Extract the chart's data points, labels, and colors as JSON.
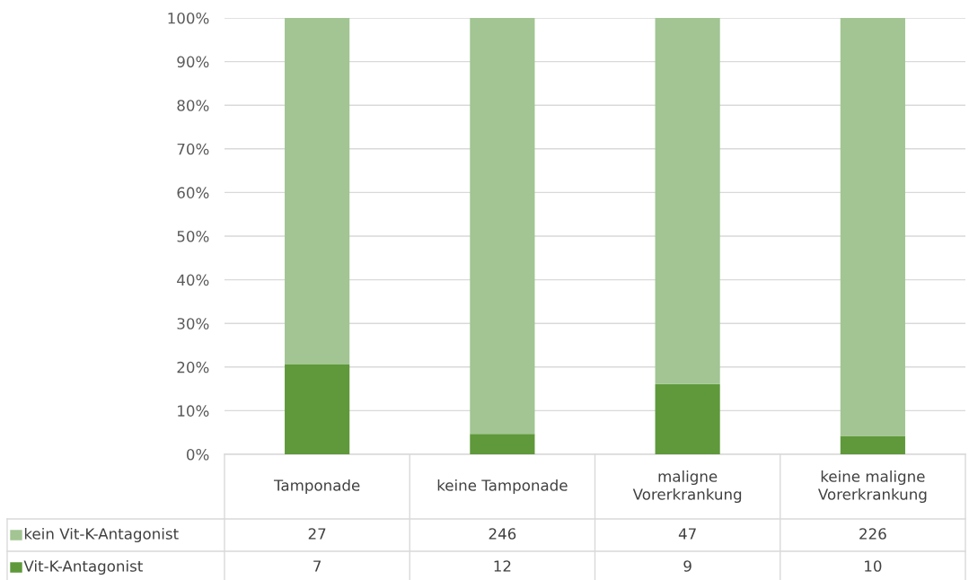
{
  "chart_data": {
    "type": "bar",
    "stacked": true,
    "categories": [
      "Tamponade",
      "keine Tamponade",
      "maligne Vorerkrankung",
      "keine maligne Vorerkrankung"
    ],
    "series": [
      {
        "name": "Vit-K-Antagonist",
        "color": "#5f993b",
        "values": [
          20.6,
          4.7,
          16.1,
          4.2
        ]
      },
      {
        "name": "kein Vit-K-Antagonist",
        "color": "#a2c593",
        "values": [
          79.4,
          95.3,
          83.9,
          95.8
        ]
      }
    ],
    "ylim": [
      0,
      100
    ],
    "yticks": [
      {
        "value": 0,
        "label": "0%"
      },
      {
        "value": 10,
        "label": "10%"
      },
      {
        "value": 20,
        "label": "20%"
      },
      {
        "value": 30,
        "label": "30%"
      },
      {
        "value": 40,
        "label": "40%"
      },
      {
        "value": 50,
        "label": "50%"
      },
      {
        "value": 60,
        "label": "60%"
      },
      {
        "value": 70,
        "label": "70%"
      },
      {
        "value": 80,
        "label": "80%"
      },
      {
        "value": 90,
        "label": "90%"
      },
      {
        "value": 100,
        "label": "100%"
      }
    ],
    "annotations": [
      "27",
      "246",
      "47",
      "226",
      "7",
      "12",
      "9",
      "10"
    ],
    "grid": "y",
    "legend": "bottom"
  }
}
